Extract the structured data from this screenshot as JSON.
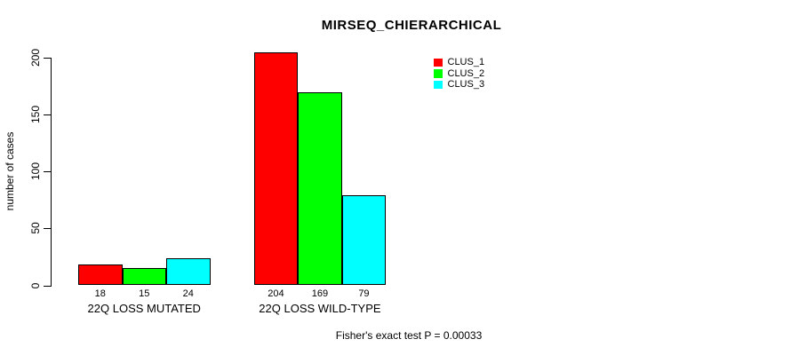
{
  "chart_data": {
    "type": "bar",
    "title": "MIRSEQ_CHIERARCHICAL",
    "xlabel": "",
    "ylabel": "number of cases",
    "categories": [
      "22Q LOSS MUTATED",
      "22Q LOSS WILD-TYPE"
    ],
    "series": [
      {
        "name": "CLUS_1",
        "color": "#ff0000",
        "values": [
          18,
          204
        ]
      },
      {
        "name": "CLUS_2",
        "color": "#00ff00",
        "values": [
          15,
          169
        ]
      },
      {
        "name": "CLUS_3",
        "color": "#00ffff",
        "values": [
          24,
          79
        ]
      }
    ],
    "yticks": [
      0,
      50,
      100,
      150,
      200
    ],
    "ylim": [
      0,
      205
    ],
    "grid": false,
    "bar_value_labels_shown": true,
    "legend": {
      "position": "top-right",
      "entries": [
        "CLUS_1",
        "CLUS_2",
        "CLUS_3"
      ]
    },
    "annotation": "Fisher's exact test P = 0.00033",
    "colors": {
      "background": "#ffffff",
      "axis": "#000000",
      "text": "#000000",
      "bar_border": "#000000"
    }
  }
}
